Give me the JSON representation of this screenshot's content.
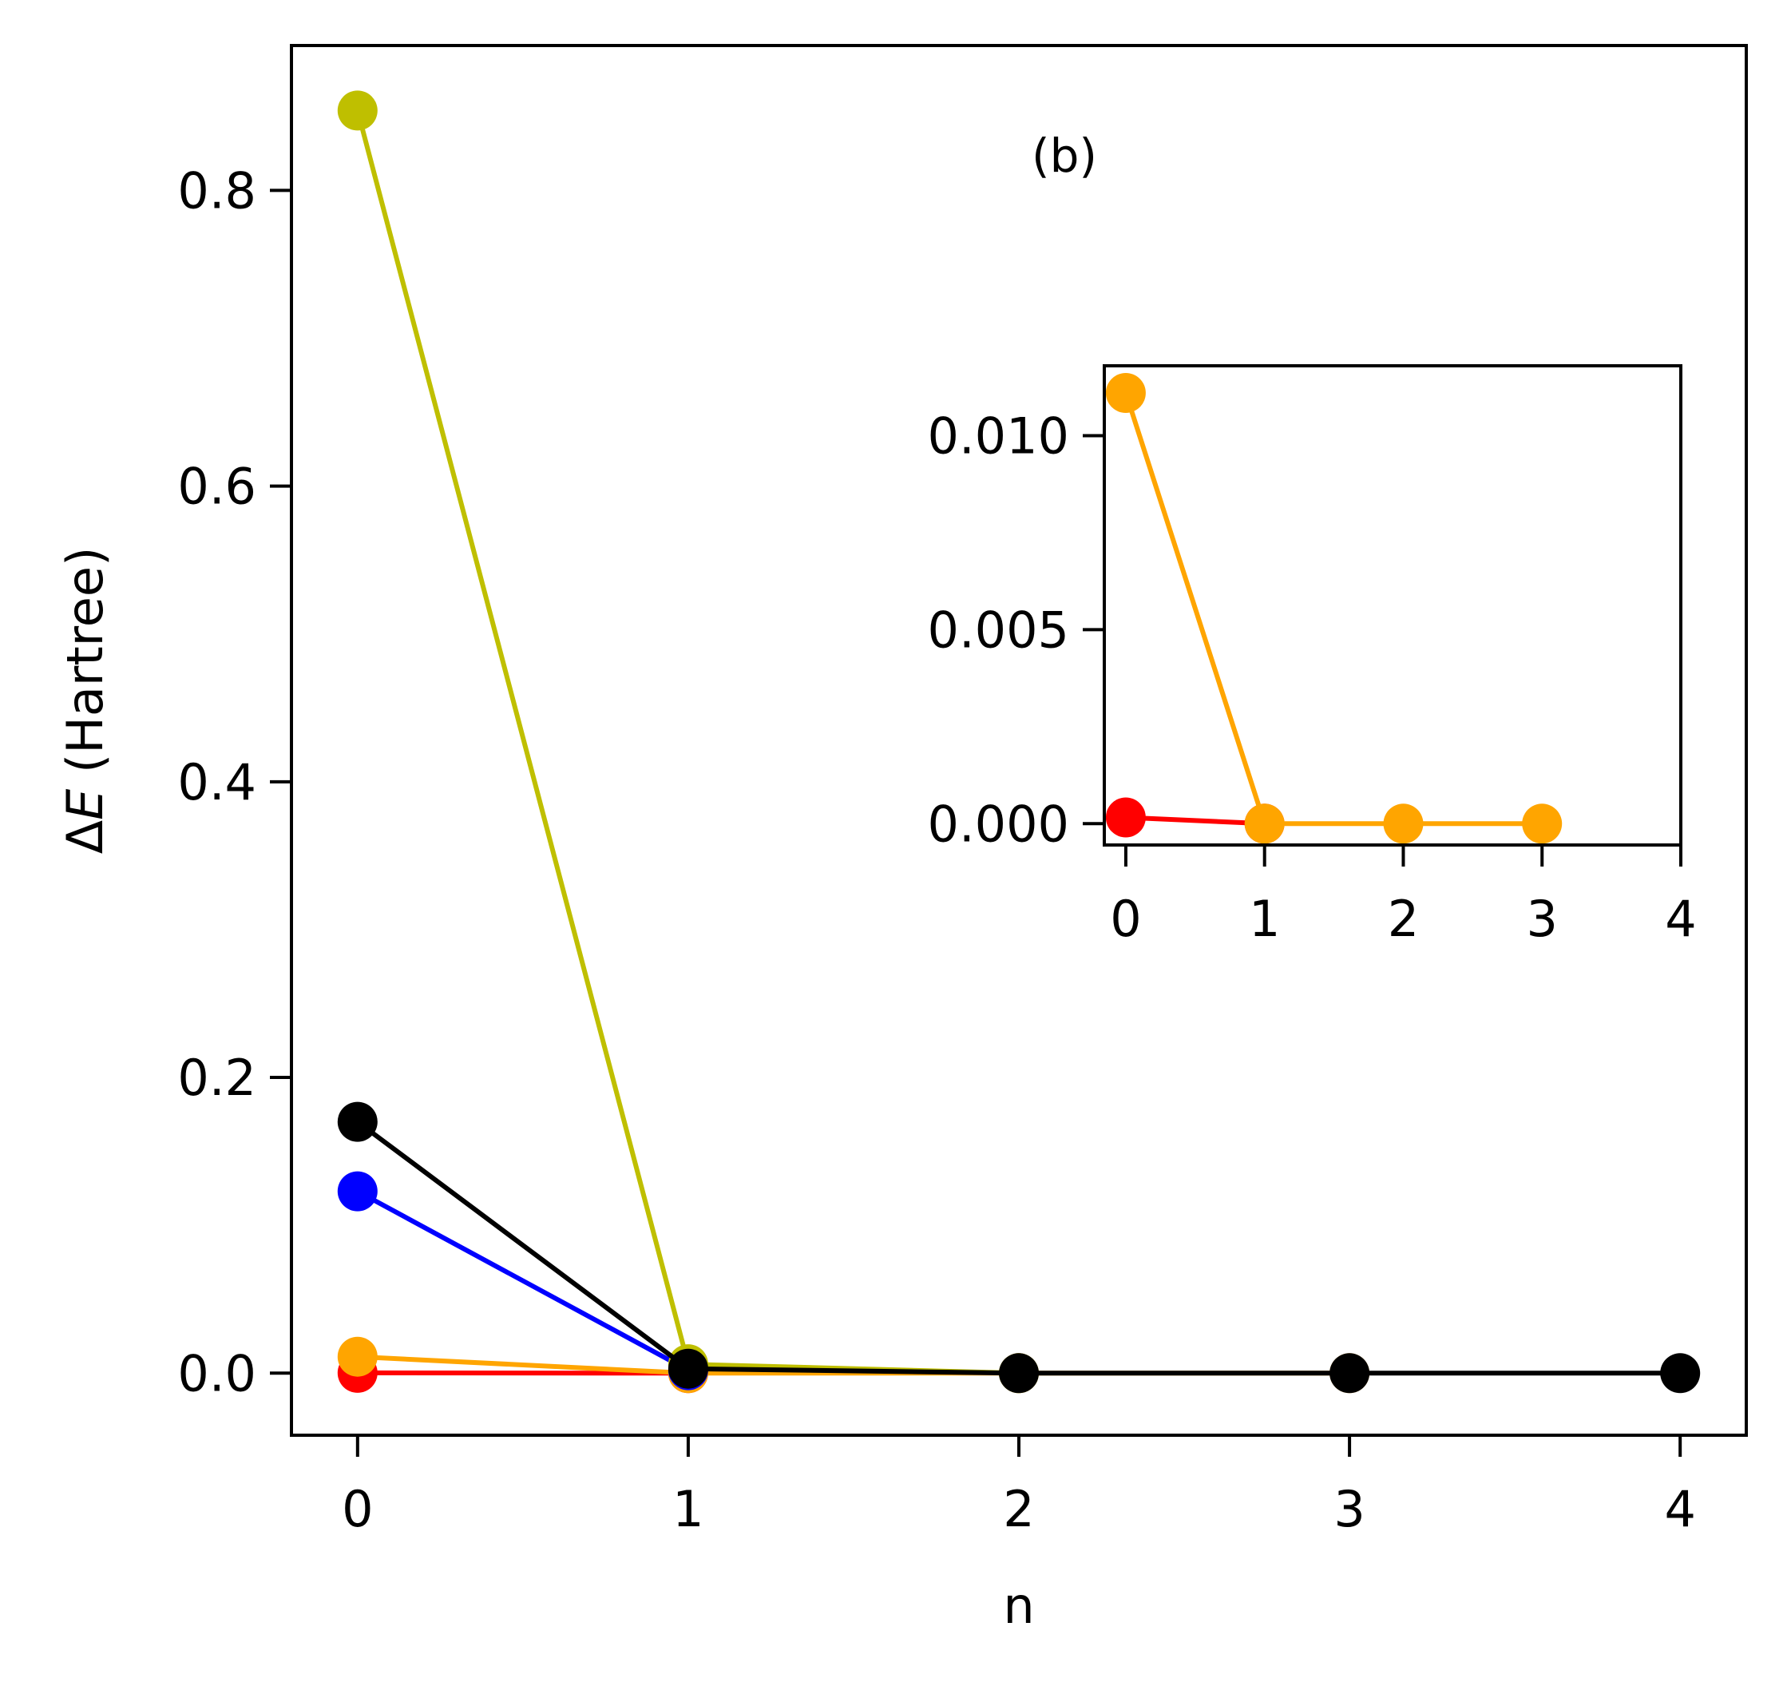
{
  "chart_data": [
    {
      "id": "main",
      "type": "line",
      "title": "",
      "xlabel": "n",
      "ylabel": "ΔE (Hartree)",
      "ylabel_parts": {
        "delta": "Δ",
        "var": "E",
        "unit": " (Hartree)"
      },
      "xlim": [
        -0.2,
        4.2
      ],
      "ylim": [
        -0.042,
        0.898
      ],
      "xticks": [
        0,
        1,
        2,
        3,
        4
      ],
      "xtick_labels": [
        "0",
        "1",
        "2",
        "3",
        "4"
      ],
      "yticks": [
        0.0,
        0.2,
        0.4,
        0.6,
        0.8
      ],
      "ytick_labels": [
        "0.0",
        "0.2",
        "0.4",
        "0.6",
        "0.8"
      ],
      "grid": false,
      "legend": null,
      "series": [
        {
          "name": "red",
          "color": "#ff0000",
          "x": [
            0,
            1
          ],
          "values": [
            0.0002,
            0.0
          ]
        },
        {
          "name": "orange",
          "color": "#ffa500",
          "x": [
            0,
            1,
            2,
            3
          ],
          "values": [
            0.0111,
            0.0,
            0.0,
            0.0
          ]
        },
        {
          "name": "blue",
          "color": "#0000ff",
          "x": [
            0,
            1
          ],
          "values": [
            0.123,
            0.002
          ]
        },
        {
          "name": "olive",
          "color": "#bfbf00",
          "x": [
            0,
            1,
            2
          ],
          "values": [
            0.854,
            0.006,
            0.0
          ]
        },
        {
          "name": "black",
          "color": "#000000",
          "x": [
            0,
            1,
            2,
            3,
            4
          ],
          "values": [
            0.17,
            0.003,
            0.0,
            0.0,
            0.0
          ]
        }
      ]
    },
    {
      "id": "inset",
      "type": "line",
      "title": "",
      "xlabel": "",
      "ylabel": "",
      "xlim": [
        -0.155,
        4.0
      ],
      "ylim": [
        -0.00055,
        0.0118
      ],
      "xticks": [
        0,
        1,
        2,
        3,
        4
      ],
      "xtick_labels": [
        "0",
        "1",
        "2",
        "3",
        "4"
      ],
      "yticks": [
        0.0,
        0.005,
        0.01
      ],
      "ytick_labels": [
        "0.000",
        "0.005",
        "0.010"
      ],
      "grid": false,
      "legend": null,
      "series": [
        {
          "name": "red",
          "color": "#ff0000",
          "x": [
            0,
            1
          ],
          "values": [
            0.00016,
            0.0
          ]
        },
        {
          "name": "orange",
          "color": "#ffa500",
          "x": [
            0,
            1,
            2,
            3
          ],
          "values": [
            0.0111,
            0.0,
            0.0,
            0.0
          ]
        }
      ]
    }
  ],
  "annotations": {
    "panel_label": "(b)"
  }
}
